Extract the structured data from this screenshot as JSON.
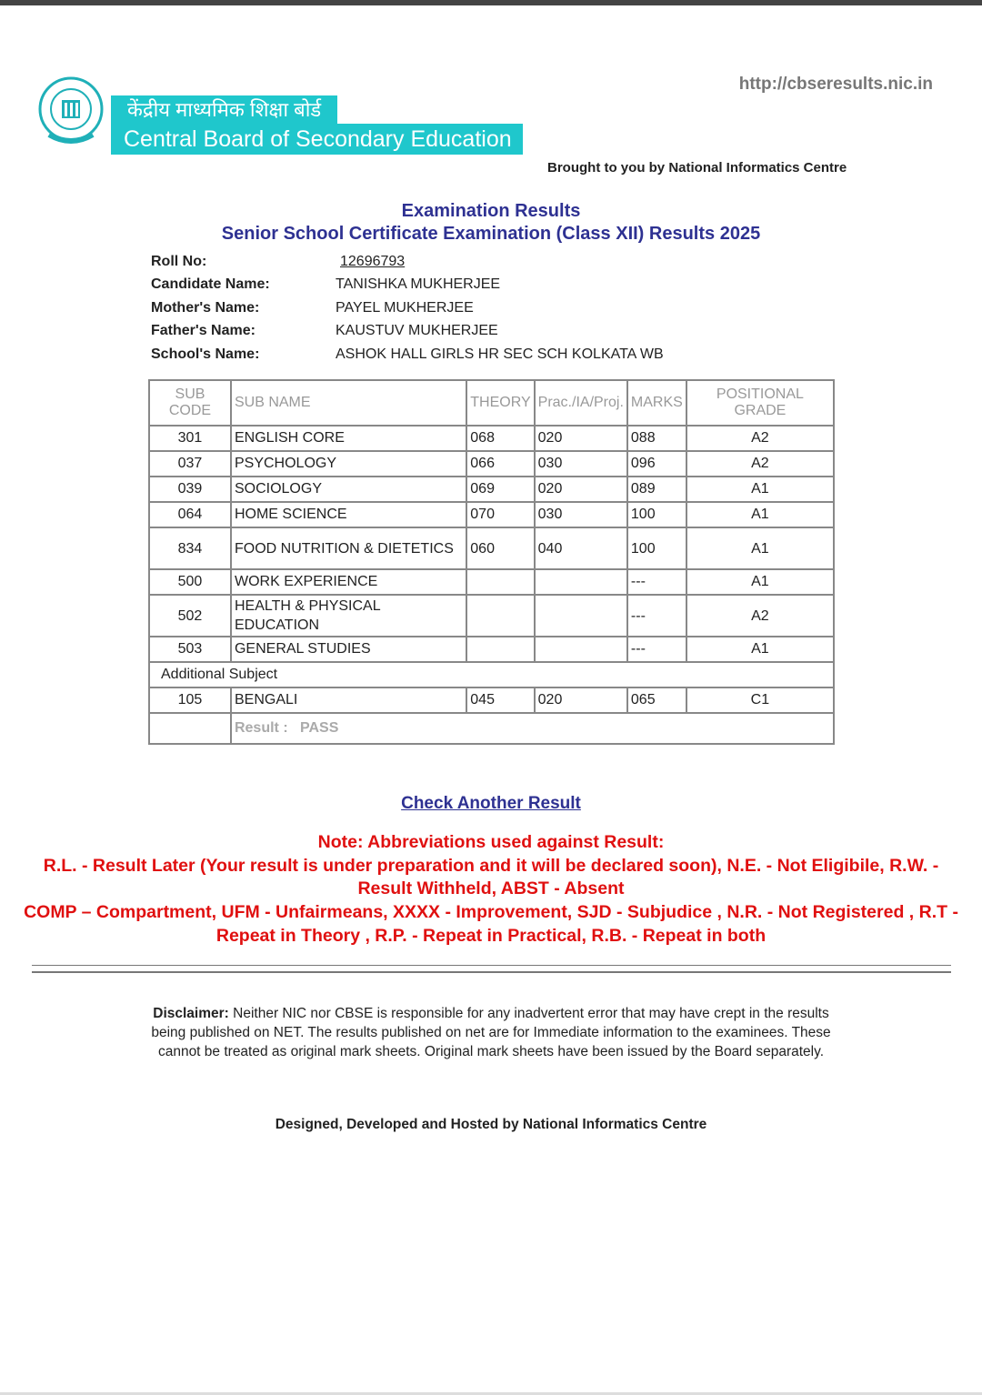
{
  "header": {
    "url": "http://cbseresults.nic.in",
    "hindi_title": "केंद्रीय माध्यमिक शिक्षा बोर्ड",
    "english_title": "Central Board of Secondary Education",
    "brought_by": "Brought to you by National Informatics Centre",
    "brand_color": "#1fc7cc"
  },
  "titles": {
    "main": "Examination Results",
    "sub": "Senior School Certificate Examination (Class XII) Results 2025"
  },
  "candidate": [
    {
      "label": "Roll No:",
      "value": "12696793"
    },
    {
      "label": "Candidate Name:",
      "value": "TANISHKA MUKHERJEE"
    },
    {
      "label": "Mother's Name:",
      "value": "PAYEL MUKHERJEE"
    },
    {
      "label": "Father's Name:",
      "value": "KAUSTUV MUKHERJEE"
    },
    {
      "label": "School's Name:",
      "value": "ASHOK HALL GIRLS HR SEC SCH KOLKATA WB"
    }
  ],
  "table": {
    "headers": [
      "SUB CODE",
      "SUB NAME",
      "THEORY",
      "Prac./IA/Proj.",
      "MARKS",
      "POSITIONAL GRADE"
    ],
    "rows": [
      [
        "301",
        "ENGLISH CORE",
        "068",
        "020",
        "088",
        "A2"
      ],
      [
        "037",
        "PSYCHOLOGY",
        "066",
        "030",
        "096",
        "A2"
      ],
      [
        "039",
        "SOCIOLOGY",
        "069",
        "020",
        "089",
        "A1"
      ],
      [
        "064",
        "HOME SCIENCE",
        "070",
        "030",
        "100",
        "A1"
      ],
      [
        "834",
        "FOOD NUTRITION & DIETETICS",
        "060",
        "040",
        "100",
        "A1"
      ],
      [
        "500",
        "WORK EXPERIENCE",
        "",
        "",
        "---",
        "A1"
      ],
      [
        "502",
        "HEALTH & PHYSICAL EDUCATION",
        "",
        "",
        "---",
        "A2"
      ],
      [
        "503",
        "GENERAL STUDIES",
        "",
        "",
        "---",
        "A1"
      ]
    ],
    "additional_label": "Additional Subject",
    "additional_rows": [
      [
        "105",
        "BENGALI",
        "045",
        "020",
        "065",
        "C1"
      ]
    ],
    "result_label": "Result :",
    "result_value": "PASS"
  },
  "check_another": "Check Another Result",
  "note": {
    "title": "Note: Abbreviations used against Result:",
    "lines": [
      "R.L. - Result Later (Your result is under preparation and it will be declared soon), N.E. - Not Eligibile, R.W. - Result Withheld, ABST - Absent",
      "COMP – Compartment, UFM - Unfairmeans, XXXX - Improvement, SJD - Subjudice , N.R. - Not Registered , R.T - Repeat in Theory , R.P. - Repeat in Practical, R.B. - Repeat in both"
    ],
    "color": "#e01010"
  },
  "disclaimer": {
    "label": "Disclaimer:",
    "text": " Neither NIC nor CBSE is responsible for any inadvertent error that may have crept in the results being published on NET. The results published on net are for Immediate information to the examinees. These cannot be treated as original mark sheets. Original mark sheets have been issued by the Board separately."
  },
  "footer": "Designed, Developed and Hosted by National Informatics Centre"
}
